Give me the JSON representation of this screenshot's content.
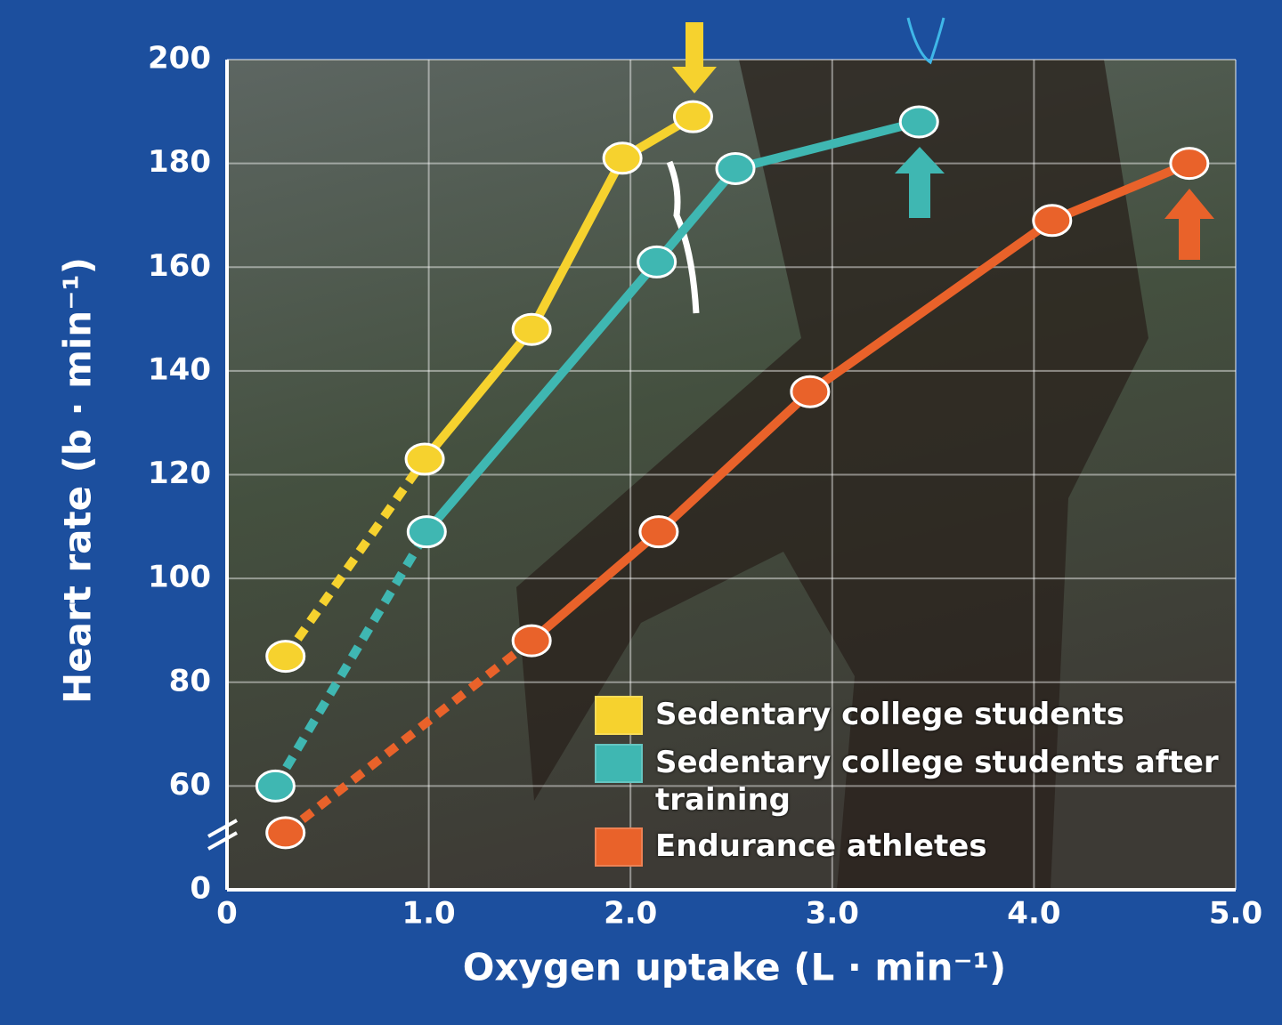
{
  "chart_data": {
    "type": "line",
    "xlabel": "Oxygen uptake (L · min⁻¹)",
    "ylabel": "Heart rate (b · min⁻¹)",
    "xlim": [
      0,
      5
    ],
    "xticks": [
      0,
      {
        "value": 1,
        "label": "1.0"
      },
      {
        "value": 2,
        "label": "2.0"
      },
      {
        "value": 3,
        "label": "3.0"
      },
      {
        "value": 4,
        "label": "4.0"
      },
      {
        "value": 5,
        "label": "5.0"
      }
    ],
    "ylim": [
      40,
      200
    ],
    "yticks": [
      {
        "value": 40,
        "label": "0"
      },
      60,
      80,
      100,
      120,
      140,
      160,
      180,
      200
    ],
    "grid": true,
    "legend": "lower right",
    "series": [
      {
        "name": "Sedentary college students",
        "color": "#f6d22e",
        "x": [
          0.29,
          0.98,
          1.51,
          1.96,
          2.31
        ],
        "values": [
          85,
          123,
          148,
          181,
          189
        ]
      },
      {
        "name": "Sedentary college students after training",
        "color": "#3fb7b2",
        "x": [
          0.24,
          0.99,
          2.13,
          2.52,
          3.43
        ],
        "values": [
          60,
          109,
          161,
          179,
          188
        ]
      },
      {
        "name": "Endurance athletes",
        "color": "#e9622a",
        "x": [
          0.29,
          1.51,
          2.14,
          2.89,
          4.09,
          4.77
        ],
        "values": [
          51,
          88,
          109,
          136,
          169,
          180
        ]
      }
    ]
  }
}
